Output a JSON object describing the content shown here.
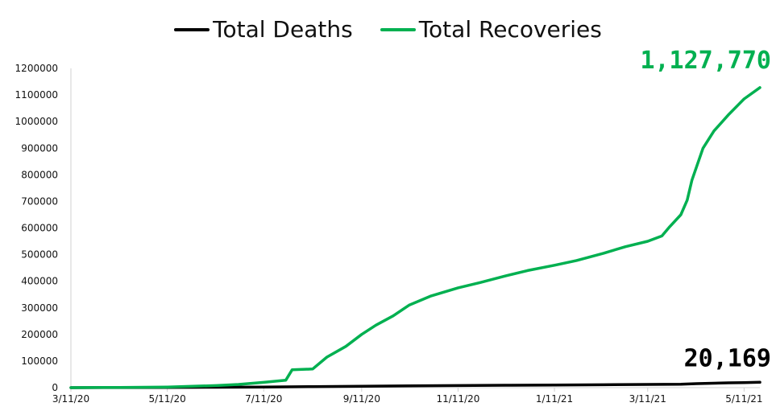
{
  "chart_data": {
    "type": "line",
    "title": "",
    "xlabel": "",
    "ylabel": "",
    "x_tick_labels": [
      "3/11/20",
      "5/11/20",
      "7/11/20",
      "9/11/20",
      "11/11/20",
      "1/11/21",
      "3/11/21",
      "5/11/21"
    ],
    "x_range": [
      "3/11/20",
      "5/21/21"
    ],
    "y_tick_labels": [
      "0",
      "100000",
      "200000",
      "300000",
      "400000",
      "500000",
      "600000",
      "700000",
      "800000",
      "900000",
      "1000000",
      "1100000",
      "1200000"
    ],
    "ylim": [
      0,
      1200000
    ],
    "grid": false,
    "legend_position": "top-center",
    "series": [
      {
        "name": "Total Deaths",
        "color": "#000000",
        "end_label": "20,169",
        "points": [
          [
            "3/11/20",
            0
          ],
          [
            "4/11/20",
            200
          ],
          [
            "5/11/20",
            800
          ],
          [
            "6/11/20",
            1500
          ],
          [
            "7/11/20",
            2500
          ],
          [
            "8/11/20",
            4000
          ],
          [
            "9/11/20",
            5500
          ],
          [
            "10/11/20",
            6500
          ],
          [
            "11/11/20",
            8000
          ],
          [
            "12/11/20",
            9000
          ],
          [
            "1/11/21",
            10000
          ],
          [
            "2/11/21",
            11000
          ],
          [
            "3/11/21",
            12000
          ],
          [
            "4/1/21",
            13000
          ],
          [
            "4/11/21",
            15000
          ],
          [
            "5/1/21",
            18000
          ],
          [
            "5/11/21",
            19000
          ],
          [
            "5/21/21",
            20169
          ]
        ]
      },
      {
        "name": "Total Recoveries",
        "color": "#00b050",
        "end_label": "1,127,770",
        "points": [
          [
            "3/11/20",
            0
          ],
          [
            "4/11/20",
            1000
          ],
          [
            "5/11/20",
            2500
          ],
          [
            "6/11/20",
            8000
          ],
          [
            "6/25/20",
            12000
          ],
          [
            "7/11/20",
            20000
          ],
          [
            "7/25/20",
            28000
          ],
          [
            "7/29/20",
            67000
          ],
          [
            "8/11/20",
            70000
          ],
          [
            "8/20/20",
            115000
          ],
          [
            "9/1/20",
            155000
          ],
          [
            "9/11/20",
            200000
          ],
          [
            "9/20/20",
            235000
          ],
          [
            "10/1/20",
            270000
          ],
          [
            "10/11/20",
            310000
          ],
          [
            "10/25/20",
            345000
          ],
          [
            "11/11/20",
            375000
          ],
          [
            "11/25/20",
            395000
          ],
          [
            "12/11/20",
            420000
          ],
          [
            "12/25/20",
            440000
          ],
          [
            "1/11/21",
            460000
          ],
          [
            "1/25/21",
            478000
          ],
          [
            "2/11/21",
            505000
          ],
          [
            "2/25/21",
            530000
          ],
          [
            "3/11/21",
            550000
          ],
          [
            "3/20/21",
            570000
          ],
          [
            "3/25/21",
            605000
          ],
          [
            "4/1/21",
            650000
          ],
          [
            "4/5/21",
            705000
          ],
          [
            "4/8/21",
            780000
          ],
          [
            "4/15/21",
            900000
          ],
          [
            "4/22/21",
            965000
          ],
          [
            "5/1/21",
            1025000
          ],
          [
            "5/11/21",
            1085000
          ],
          [
            "5/21/21",
            1127770
          ]
        ]
      }
    ]
  }
}
